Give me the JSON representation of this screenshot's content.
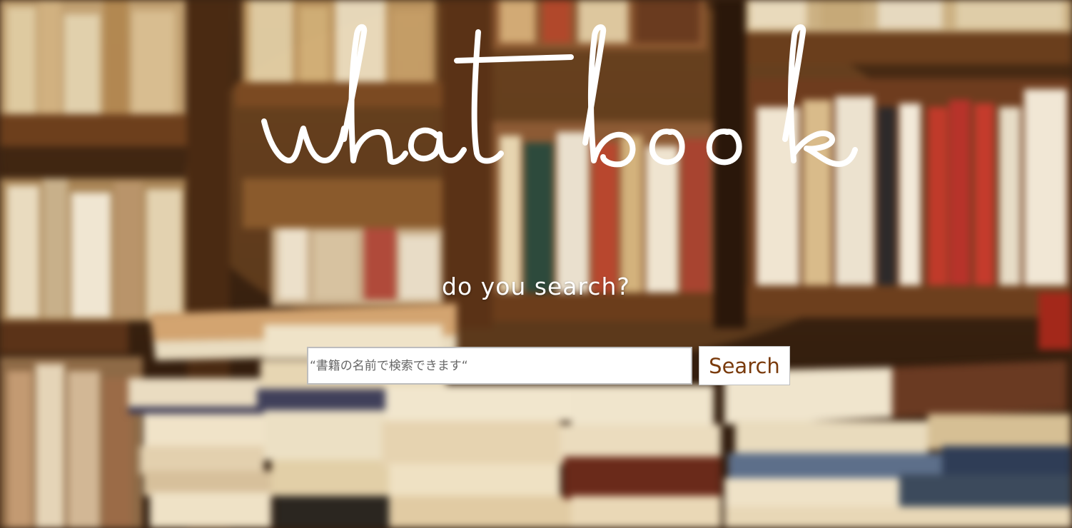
{
  "hero": {
    "title": "what book",
    "subtitle": "do you search?"
  },
  "search": {
    "placeholder": "“書籍の名前で検索できます“",
    "value": "",
    "button_label": "Search"
  },
  "colors": {
    "title": "#ffffff",
    "subtitle": "#ffffff",
    "button_text": "#7a3b0c",
    "input_border": "#bdbdbd",
    "background_dark": "#3a2414"
  },
  "background": {
    "image": "blurred-library-bookshelves-with-stacked-books"
  }
}
